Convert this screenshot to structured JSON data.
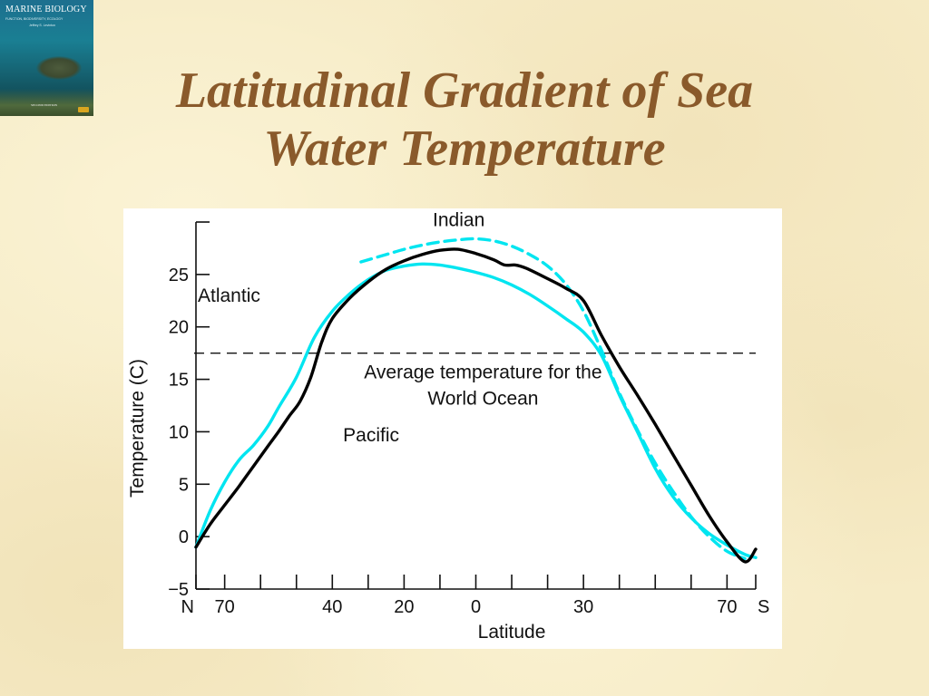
{
  "slide": {
    "title_line1": "Latitudinal Gradient of Sea",
    "title_line2": "Water Temperature"
  },
  "cover": {
    "title": "MARINE BIOLOGY",
    "subtitle": "FUNCTION, BIODIVERSITY, ECOLOGY",
    "author": "Jeffrey S. Levinton",
    "edition": "SECOND EDITION"
  },
  "colors": {
    "title": "#8a5a2b",
    "background": "#f6ebc6",
    "atlantic": "#00e5f0",
    "pacific": "#000000",
    "indian": "#00e5f0",
    "average": "#000000"
  },
  "chart_data": {
    "type": "line",
    "xlabel": "Latitude",
    "ylabel": "Temperature (C)",
    "ylim": [
      -5,
      30
    ],
    "xlim": [
      -78,
      78
    ],
    "x_tick_labels": [
      {
        "x": -78,
        "label": "N"
      },
      {
        "x": -70,
        "label": "70"
      },
      {
        "x": -40,
        "label": "40"
      },
      {
        "x": -20,
        "label": "20"
      },
      {
        "x": 0,
        "label": "0"
      },
      {
        "x": 30,
        "label": "30"
      },
      {
        "x": 70,
        "label": "70"
      },
      {
        "x": 78,
        "label": "S"
      }
    ],
    "x_minor_ticks": [
      -78,
      -70,
      -60,
      -50,
      -40,
      -30,
      -20,
      -10,
      0,
      10,
      20,
      30,
      40,
      50,
      60,
      70,
      78
    ],
    "y_tick_labels": [
      {
        "y": 25,
        "label": "25"
      },
      {
        "y": 20,
        "label": "20"
      },
      {
        "y": 15,
        "label": "15"
      },
      {
        "y": 10,
        "label": "10"
      },
      {
        "y": 5,
        "label": "5"
      },
      {
        "y": 0,
        "label": "0"
      },
      {
        "y": -5,
        "label": "−5"
      }
    ],
    "series": [
      {
        "name": "Atlantic",
        "style": "solid",
        "x": [
          -78,
          -74,
          -70,
          -66,
          -62,
          -58,
          -55,
          -50,
          -45,
          -40,
          -35,
          -30,
          -25,
          -20,
          -15,
          -10,
          -5,
          0,
          5,
          10,
          15,
          20,
          25,
          30,
          35,
          40,
          45,
          50,
          55,
          60,
          65,
          70,
          75,
          78
        ],
        "y": [
          -1,
          2.5,
          5.2,
          7.3,
          8.7,
          10.5,
          12.3,
          15.2,
          19,
          21.5,
          23.2,
          24.5,
          25.4,
          25.8,
          26.0,
          25.9,
          25.6,
          25.2,
          24.7,
          24.0,
          23.1,
          22.0,
          20.8,
          19.5,
          17.3,
          13.5,
          10.0,
          6.5,
          3.8,
          1.8,
          0.3,
          -0.8,
          -1.7,
          -2.0
        ]
      },
      {
        "name": "Pacific",
        "style": "solid",
        "x": [
          -78,
          -74,
          -70,
          -66,
          -62,
          -58,
          -55,
          -52,
          -49,
          -46,
          -43,
          -40,
          -35,
          -30,
          -25,
          -20,
          -15,
          -10,
          -5,
          0,
          5,
          8,
          11,
          14,
          20,
          25,
          30,
          35,
          40,
          45,
          50,
          55,
          60,
          65,
          70,
          75,
          78
        ],
        "y": [
          -1,
          1.2,
          3.0,
          4.8,
          6.7,
          8.6,
          10.0,
          11.5,
          12.9,
          15.2,
          18.5,
          20.8,
          22.8,
          24.3,
          25.5,
          26.3,
          26.9,
          27.3,
          27.4,
          27.0,
          26.4,
          25.9,
          25.9,
          25.6,
          24.6,
          23.7,
          22.5,
          19.2,
          16.2,
          13.5,
          10.7,
          7.8,
          4.9,
          2.0,
          -0.5,
          -2.4,
          -1.2
        ]
      },
      {
        "name": "Indian",
        "style": "dashed",
        "x": [
          -32,
          -25,
          -20,
          -15,
          -10,
          -5,
          0,
          5,
          10,
          15,
          20,
          25,
          30,
          35,
          40,
          45,
          50,
          55,
          60,
          65,
          70,
          75
        ],
        "y": [
          26.2,
          26.9,
          27.4,
          27.8,
          28.1,
          28.3,
          28.4,
          28.2,
          27.7,
          26.9,
          25.8,
          24.1,
          21.5,
          17.8,
          13.7,
          10.2,
          7.0,
          4.3,
          1.9,
          0.0,
          -1.4,
          -2.1
        ]
      }
    ],
    "reference_line": {
      "y": 17.5,
      "style": "dashed",
      "label_line1": "Average temperature for the",
      "label_line2": "World Ocean"
    },
    "annotations": {
      "indian": "Indian",
      "atlantic": "Atlantic",
      "pacific": "Pacific"
    },
    "grid": false,
    "legend": "none (inline labels)"
  }
}
